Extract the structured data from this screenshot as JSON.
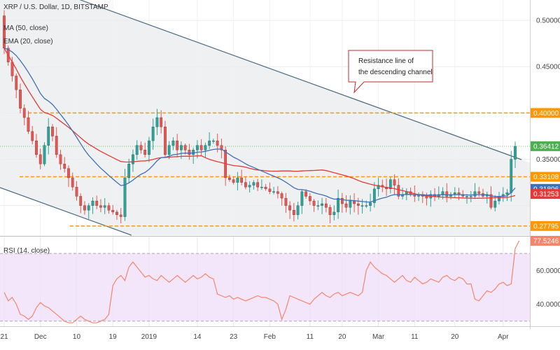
{
  "header": {
    "symbol_line": "XRP / U.S. Dollar, 1D, BITSTAMP",
    "ma_line": "MA (50, close)",
    "ema_line": "EMA (20, close)",
    "rsi_line": "RSI (14, close)"
  },
  "annotation": {
    "line1": "Resistance line of",
    "line2": "the descending channel"
  },
  "colors": {
    "up": "#26a69a",
    "down": "#ef5350",
    "ma50": "#e53935",
    "ema20": "#3f6fb6",
    "channel": "#4a6a82",
    "support": "#ff9800",
    "rsi": "#f4856b",
    "rsi_band": "#f3e6fb",
    "price_tag": "#4caf50"
  },
  "chart_data": [
    {
      "type": "candlestick",
      "title": "XRP / U.S. Dollar, 1D, BITSTAMP",
      "x_tick_labels": [
        "21",
        "Dec",
        "10",
        "19",
        "2019",
        "14",
        "23",
        "Feb",
        "11",
        "20",
        "Mar",
        "11",
        "20",
        "Apr"
      ],
      "y_tick_labels": [
        "0.50000",
        "0.45000",
        "0.35000"
      ],
      "ylim": [
        0.268,
        0.522
      ],
      "horizontal_levels": [
        0.4,
        0.33108,
        0.27795
      ],
      "price_tags": [
        {
          "label": "0.40000",
          "value": 0.4,
          "color": "#ff9800"
        },
        {
          "label": "0.36412",
          "value": 0.36412,
          "color": "#4caf50"
        },
        {
          "label": "0.33108",
          "value": 0.33108,
          "color": "#ff9800"
        },
        {
          "label": "0.31806",
          "value": 0.31806,
          "color": "#3f6fb6"
        },
        {
          "label": "0.31253",
          "value": 0.31253,
          "color": "#e53935"
        },
        {
          "label": "0.27795",
          "value": 0.27795,
          "color": "#ff9800"
        }
      ],
      "series": [
        {
          "name": "MA (50, close)",
          "color": "#e53935"
        },
        {
          "name": "EMA (20, close)",
          "color": "#3f6fb6"
        }
      ],
      "close": [
        0.47,
        0.455,
        0.44,
        0.425,
        0.405,
        0.395,
        0.38,
        0.37,
        0.355,
        0.345,
        0.365,
        0.385,
        0.375,
        0.355,
        0.345,
        0.34,
        0.33,
        0.32,
        0.31,
        0.3,
        0.295,
        0.3,
        0.305,
        0.3,
        0.298,
        0.3,
        0.295,
        0.293,
        0.29,
        0.288,
        0.33,
        0.345,
        0.355,
        0.365,
        0.36,
        0.355,
        0.37,
        0.385,
        0.395,
        0.385,
        0.355,
        0.365,
        0.37,
        0.36,
        0.365,
        0.36,
        0.355,
        0.36,
        0.365,
        0.36,
        0.365,
        0.37,
        0.37,
        0.365,
        0.36,
        0.33,
        0.328,
        0.325,
        0.33,
        0.325,
        0.32,
        0.322,
        0.325,
        0.32,
        0.32,
        0.318,
        0.315,
        0.315,
        0.313,
        0.308,
        0.3,
        0.295,
        0.29,
        0.3,
        0.315,
        0.31,
        0.305,
        0.3,
        0.3,
        0.302,
        0.298,
        0.29,
        0.293,
        0.308,
        0.302,
        0.298,
        0.305,
        0.302,
        0.3,
        0.3,
        0.3,
        0.303,
        0.318,
        0.322,
        0.32,
        0.318,
        0.328,
        0.322,
        0.31,
        0.312,
        0.315,
        0.312,
        0.31,
        0.312,
        0.31,
        0.308,
        0.312,
        0.31,
        0.312,
        0.315,
        0.31,
        0.312,
        0.314,
        0.312,
        0.31,
        0.31,
        0.31,
        0.315,
        0.313,
        0.31,
        0.312,
        0.298,
        0.305,
        0.31,
        0.312,
        0.314,
        0.35,
        0.364
      ]
    },
    {
      "type": "line",
      "title": "RSI (14, close)",
      "y_tick_labels": [
        "60.0000",
        "40.0000"
      ],
      "ylim": [
        27,
        80
      ],
      "levels": [
        70,
        30
      ],
      "last_value_label": "77.5246",
      "series": [
        {
          "name": "RSI (14, close)",
          "color": "#f4856b"
        }
      ],
      "values": [
        47,
        42,
        44,
        40,
        34,
        33,
        31,
        33,
        38,
        41,
        39,
        38,
        36,
        34,
        32,
        30,
        29,
        29,
        31,
        33,
        31,
        30,
        29,
        29,
        30,
        31,
        34,
        51,
        55,
        57,
        54,
        62,
        65,
        62,
        59,
        56,
        57,
        55,
        54,
        57,
        55,
        53,
        55,
        57,
        55,
        53,
        55,
        57,
        55,
        56,
        58,
        56,
        55,
        46,
        45,
        44,
        45,
        43,
        44,
        43,
        42,
        43,
        44,
        45,
        44,
        44,
        43,
        42,
        40,
        31,
        37,
        45,
        44,
        43,
        42,
        41,
        40,
        43,
        45,
        47,
        45,
        44,
        46,
        47,
        45,
        46,
        47,
        46,
        45,
        47,
        60,
        65,
        62,
        60,
        58,
        57,
        55,
        53,
        55,
        57,
        54,
        53,
        56,
        54,
        52,
        53,
        55,
        54,
        53,
        56,
        57,
        55,
        54,
        56,
        55,
        52,
        52,
        43,
        42,
        45,
        48,
        47,
        49,
        52,
        53,
        51,
        52,
        73,
        77.5246
      ]
    }
  ]
}
